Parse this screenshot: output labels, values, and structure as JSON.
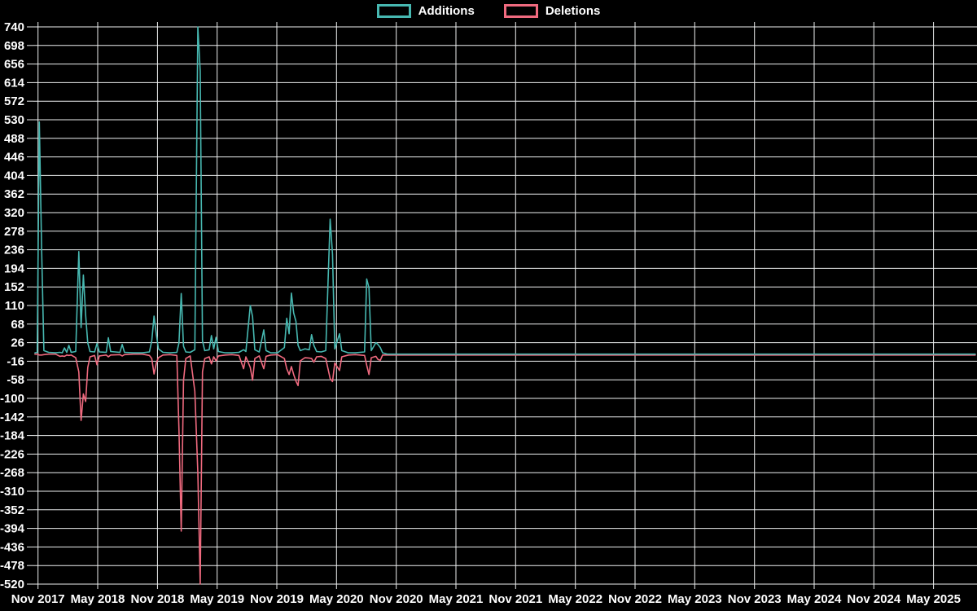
{
  "chart_data": {
    "type": "line",
    "title": "",
    "legend": {
      "position": "top"
    },
    "colors": {
      "background": "#000000",
      "grid": "#eef0f1",
      "text": "#ffffff",
      "additions": "#47b8b1",
      "deletions": "#f06a7f"
    },
    "y_axis": {
      "min": -520,
      "max": 740,
      "tick_step": 42,
      "gridlines": true
    },
    "x_axis": {
      "gridlines": true,
      "ticks": [
        {
          "label": "Nov 2017",
          "date": "2017-11-01"
        },
        {
          "label": "May 2018",
          "date": "2018-05-01"
        },
        {
          "label": "Nov 2018",
          "date": "2018-11-01"
        },
        {
          "label": "May 2019",
          "date": "2019-05-01"
        },
        {
          "label": "Nov 2019",
          "date": "2019-11-01"
        },
        {
          "label": "May 2020",
          "date": "2020-05-01"
        },
        {
          "label": "Nov 2020",
          "date": "2020-11-01"
        },
        {
          "label": "May 2021",
          "date": "2021-05-01"
        },
        {
          "label": "Nov 2021",
          "date": "2021-11-01"
        },
        {
          "label": "May 2022",
          "date": "2022-05-01"
        },
        {
          "label": "Nov 2022",
          "date": "2022-11-01"
        },
        {
          "label": "May 2023",
          "date": "2023-05-01"
        },
        {
          "label": "Nov 2023",
          "date": "2023-11-01"
        },
        {
          "label": "May 2024",
          "date": "2024-05-01"
        },
        {
          "label": "Nov 2024",
          "date": "2024-11-01"
        },
        {
          "label": "May 2025",
          "date": "2025-05-01"
        }
      ]
    },
    "dates": [
      "2017-10-22",
      "2017-10-29",
      "2017-11-05",
      "2017-11-12",
      "2017-11-19",
      "2017-12-03",
      "2017-12-24",
      "2018-01-07",
      "2018-01-14",
      "2018-01-21",
      "2018-01-28",
      "2018-02-04",
      "2018-02-11",
      "2018-02-25",
      "2018-03-04",
      "2018-03-11",
      "2018-03-18",
      "2018-03-25",
      "2018-04-01",
      "2018-04-08",
      "2018-04-22",
      "2018-04-29",
      "2018-05-06",
      "2018-05-27",
      "2018-06-03",
      "2018-06-10",
      "2018-07-08",
      "2018-07-15",
      "2018-07-22",
      "2018-08-19",
      "2018-09-16",
      "2018-10-07",
      "2018-10-14",
      "2018-10-21",
      "2018-10-28",
      "2018-11-04",
      "2018-11-18",
      "2018-12-09",
      "2018-12-30",
      "2019-01-06",
      "2019-01-13",
      "2019-01-20",
      "2019-01-27",
      "2019-02-10",
      "2019-02-24",
      "2019-03-03",
      "2019-03-10",
      "2019-03-17",
      "2019-03-24",
      "2019-04-07",
      "2019-04-14",
      "2019-04-21",
      "2019-04-28",
      "2019-05-05",
      "2019-05-26",
      "2019-06-16",
      "2019-07-07",
      "2019-07-21",
      "2019-07-28",
      "2019-08-11",
      "2019-08-18",
      "2019-08-25",
      "2019-09-08",
      "2019-09-22",
      "2019-09-29",
      "2019-10-13",
      "2019-11-03",
      "2019-11-24",
      "2019-12-01",
      "2019-12-08",
      "2019-12-15",
      "2019-12-22",
      "2019-12-29",
      "2020-01-05",
      "2020-01-12",
      "2020-01-26",
      "2020-02-09",
      "2020-02-16",
      "2020-02-23",
      "2020-03-01",
      "2020-03-15",
      "2020-03-29",
      "2020-04-12",
      "2020-04-19",
      "2020-04-26",
      "2020-05-10",
      "2020-05-17",
      "2020-06-07",
      "2020-06-28",
      "2020-07-26",
      "2020-08-02",
      "2020-08-09",
      "2020-08-16",
      "2020-08-30",
      "2020-09-06",
      "2020-09-13",
      "2020-09-20",
      "2020-10-04",
      "2021-01-03",
      "2021-07-04",
      "2022-01-02",
      "2022-07-03",
      "2023-01-01",
      "2023-07-02",
      "2024-01-07",
      "2024-07-07",
      "2025-01-05",
      "2025-07-06",
      "2025-09-07"
    ],
    "series": [
      {
        "name": "Additions",
        "color": "#47b8b1",
        "values": [
          3,
          4,
          525,
          240,
          8,
          4,
          3,
          4,
          3,
          14,
          4,
          20,
          4,
          6,
          232,
          60,
          179,
          88,
          25,
          6,
          5,
          24,
          5,
          4,
          37,
          6,
          4,
          22,
          4,
          3,
          3,
          5,
          30,
          86,
          45,
          12,
          4,
          3,
          4,
          25,
          137,
          18,
          5,
          4,
          10,
          740,
          640,
          30,
          8,
          10,
          42,
          12,
          38,
          6,
          3,
          3,
          4,
          10,
          6,
          110,
          85,
          10,
          5,
          55,
          8,
          3,
          3,
          15,
          81,
          46,
          138,
          93,
          74,
          20,
          8,
          12,
          10,
          44,
          20,
          6,
          5,
          8,
          305,
          226,
          12,
          46,
          8,
          3,
          3,
          5,
          170,
          150,
          8,
          26,
          22,
          15,
          3,
          0,
          0,
          0,
          0,
          0,
          0,
          0,
          0,
          0,
          0,
          0,
          0
        ]
      },
      {
        "name": "Deletions",
        "color": "#f06a7f",
        "values": [
          0,
          0,
          -2,
          -2,
          -1,
          0,
          0,
          -5,
          -4,
          -5,
          -2,
          -3,
          -2,
          -8,
          -40,
          -150,
          -90,
          -107,
          -30,
          -6,
          -3,
          -24,
          -4,
          -2,
          -6,
          -2,
          -1,
          -4,
          -1,
          0,
          0,
          -3,
          -10,
          -45,
          -20,
          -8,
          -2,
          -1,
          -3,
          -170,
          -400,
          -60,
          -10,
          -4,
          -84,
          -268,
          -520,
          -40,
          -10,
          -6,
          -22,
          -6,
          -15,
          -4,
          -2,
          -1,
          -3,
          -33,
          -6,
          -30,
          -59,
          -10,
          -4,
          -33,
          -5,
          -2,
          -1,
          -10,
          -33,
          -46,
          -28,
          -46,
          -61,
          -71,
          -15,
          -8,
          -9,
          -10,
          -18,
          -6,
          -5,
          -10,
          -55,
          -62,
          -20,
          -37,
          -6,
          -2,
          -1,
          -3,
          -25,
          -46,
          -8,
          -5,
          -12,
          -14,
          -2,
          -2,
          -2,
          -2,
          -2,
          -2,
          -2,
          -2,
          -2,
          -2,
          -2,
          -2,
          -2
        ]
      }
    ]
  }
}
